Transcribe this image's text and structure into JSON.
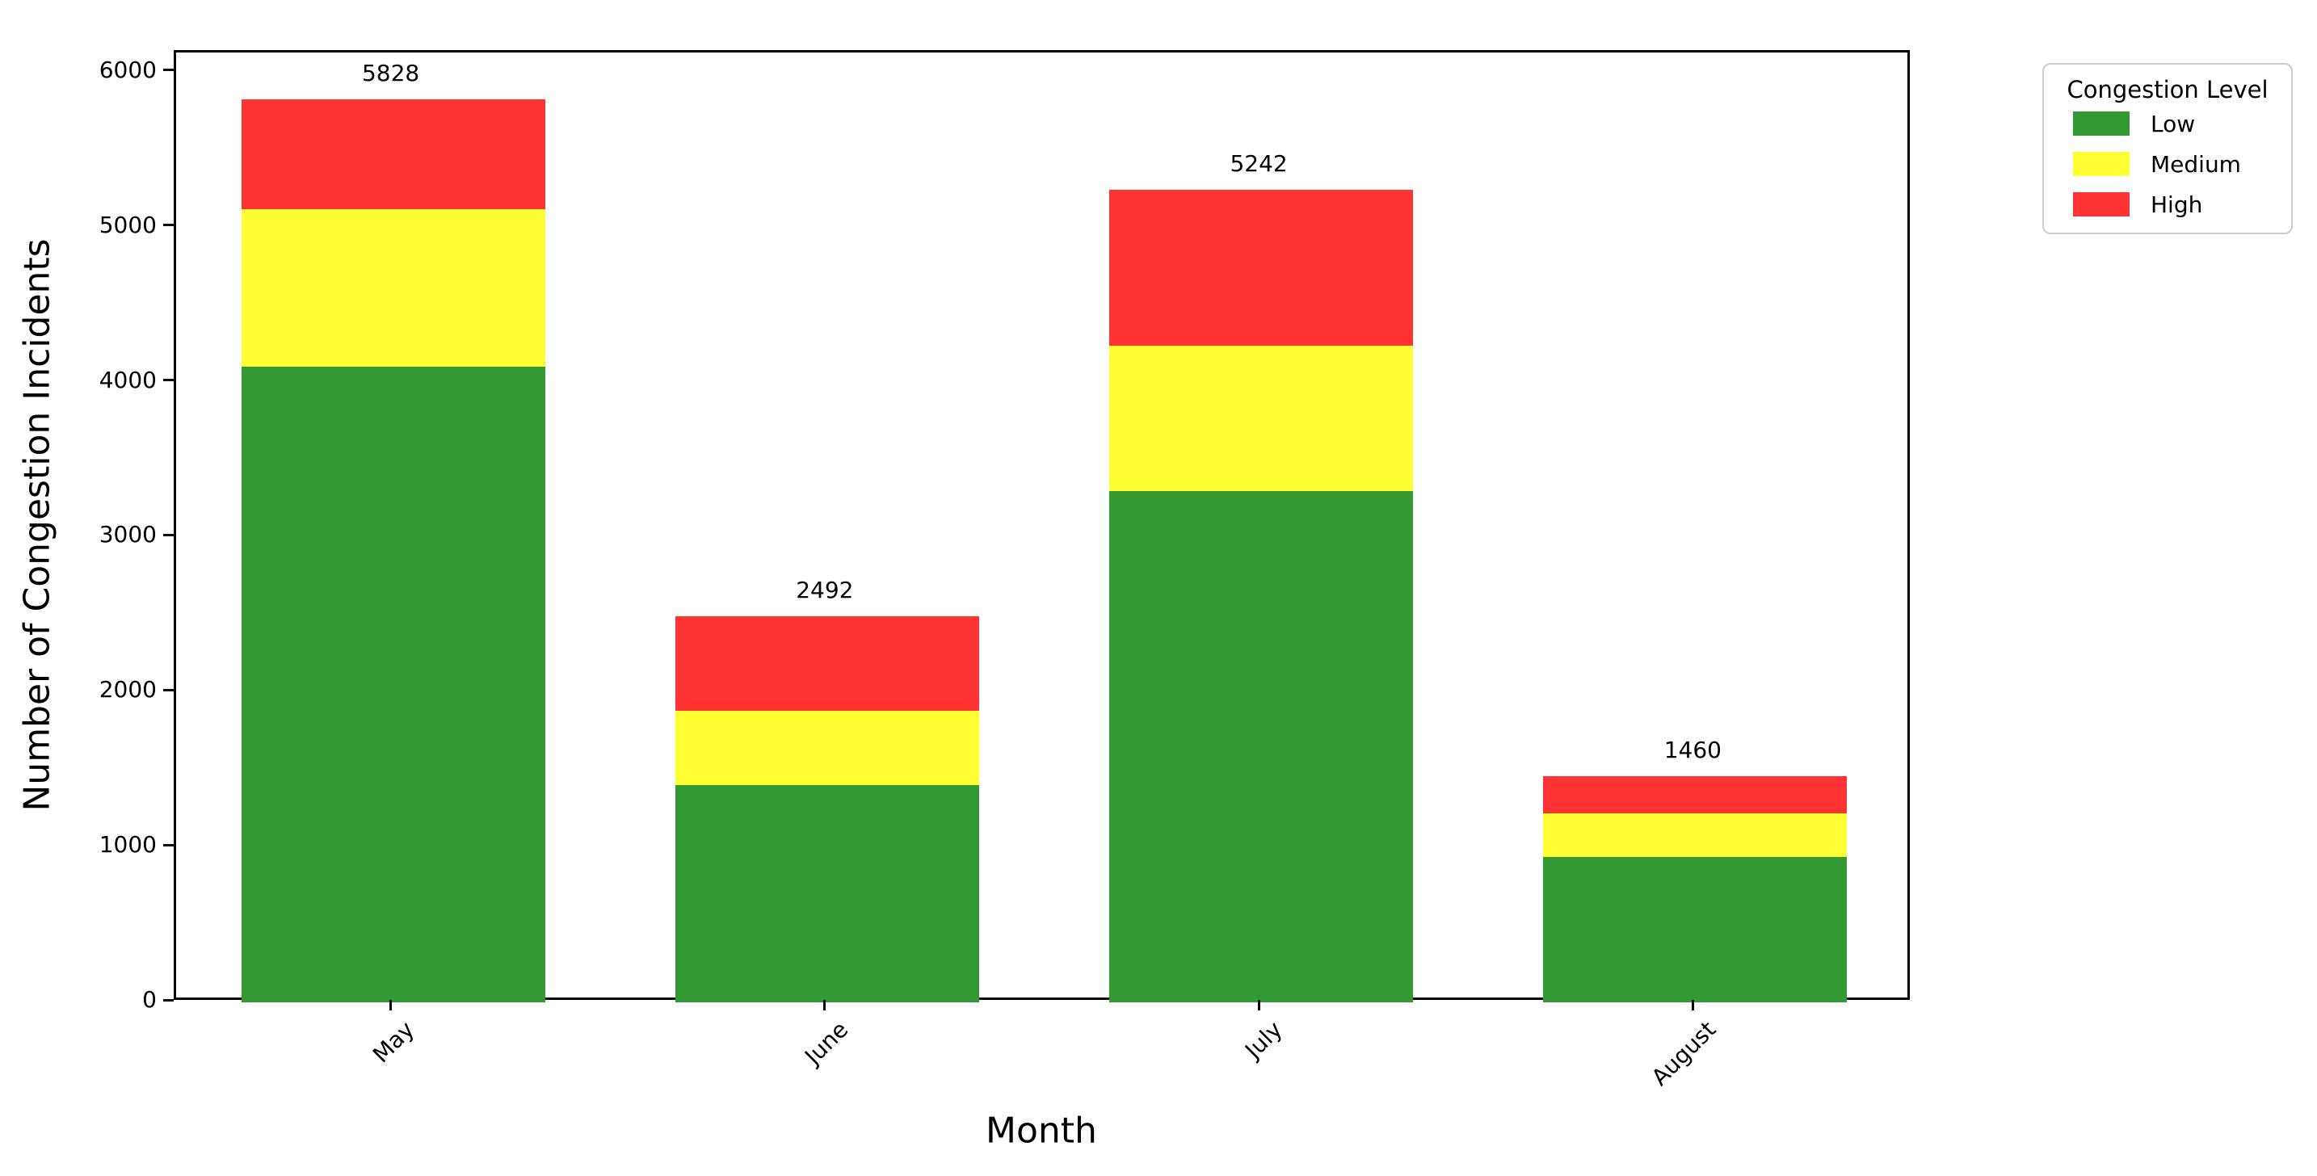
{
  "chart_data": {
    "type": "bar",
    "stacked": true,
    "title": "",
    "xlabel": "Month",
    "ylabel": "Number of Congestion Incidents",
    "categories": [
      "May",
      "June",
      "July",
      "August"
    ],
    "series": [
      {
        "name": "Low",
        "color": "#339933",
        "values": [
          4100,
          1400,
          3300,
          940
        ]
      },
      {
        "name": "Medium",
        "color": "#ffff33",
        "values": [
          1020,
          480,
          940,
          280
        ]
      },
      {
        "name": "High",
        "color": "#ff3333",
        "values": [
          708,
          612,
          1002,
          240
        ]
      }
    ],
    "totals": [
      5828,
      2492,
      5242,
      1460
    ],
    "total_labels": [
      "5828",
      "2492",
      "5242",
      "1460"
    ],
    "yticks": [
      0,
      1000,
      2000,
      3000,
      4000,
      5000,
      6000
    ],
    "ylim": [
      0,
      6130
    ],
    "xtick_rotation_deg": 45,
    "grid": false,
    "legend": {
      "title": "Congestion Level",
      "position": "outside-upper-right",
      "entries": [
        "Low",
        "Medium",
        "High"
      ]
    }
  },
  "colors": {
    "axis": "#000000",
    "background": "#ffffff",
    "legend_border": "#cccccc"
  }
}
